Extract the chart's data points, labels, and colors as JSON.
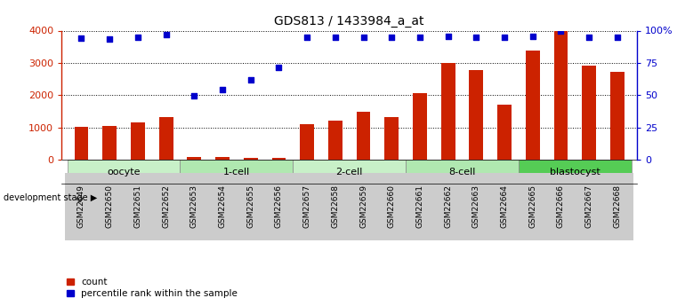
{
  "title": "GDS813 / 1433984_a_at",
  "samples": [
    "GSM22649",
    "GSM22650",
    "GSM22651",
    "GSM22652",
    "GSM22653",
    "GSM22654",
    "GSM22655",
    "GSM22656",
    "GSM22657",
    "GSM22658",
    "GSM22659",
    "GSM22660",
    "GSM22661",
    "GSM22662",
    "GSM22663",
    "GSM22664",
    "GSM22665",
    "GSM22666",
    "GSM22667",
    "GSM22668"
  ],
  "counts": [
    1020,
    1050,
    1150,
    1330,
    90,
    100,
    60,
    80,
    1100,
    1220,
    1480,
    1330,
    2080,
    3000,
    2770,
    1720,
    3380,
    4000,
    2930,
    2730
  ],
  "percentile_left_axis": [
    3780,
    3740,
    3790,
    3870,
    1980,
    2180,
    2470,
    2860,
    3790,
    3800,
    3790,
    3800,
    3800,
    3810,
    3800,
    3800,
    3820,
    4000,
    3800,
    3800
  ],
  "stages": [
    {
      "name": "oocyte",
      "start": 0,
      "end": 4
    },
    {
      "name": "1-cell",
      "start": 4,
      "end": 8
    },
    {
      "name": "2-cell",
      "start": 8,
      "end": 12
    },
    {
      "name": "8-cell",
      "start": 12,
      "end": 16
    },
    {
      "name": "blastocyst",
      "start": 16,
      "end": 20
    }
  ],
  "stage_colors": [
    "#c8f0c8",
    "#b0e8b0",
    "#c8f0c8",
    "#b0e8b0",
    "#55cc55"
  ],
  "bar_color": "#cc2200",
  "dot_color": "#0000cc",
  "left_axis_color": "#cc2200",
  "right_axis_color": "#0000cc",
  "ylim_left": [
    0,
    4000
  ],
  "ylim_right": [
    0,
    100
  ],
  "yticks_left": [
    0,
    1000,
    2000,
    3000,
    4000
  ],
  "yticks_right": [
    0,
    25,
    50,
    75,
    100
  ],
  "yticklabels_right": [
    "0",
    "25",
    "50",
    "75",
    "100%"
  ],
  "legend_count_label": "count",
  "legend_pct_label": "percentile rank within the sample",
  "dev_stage_label": "development stage",
  "background_color": "#ffffff",
  "tick_bg_color": "#cccccc"
}
